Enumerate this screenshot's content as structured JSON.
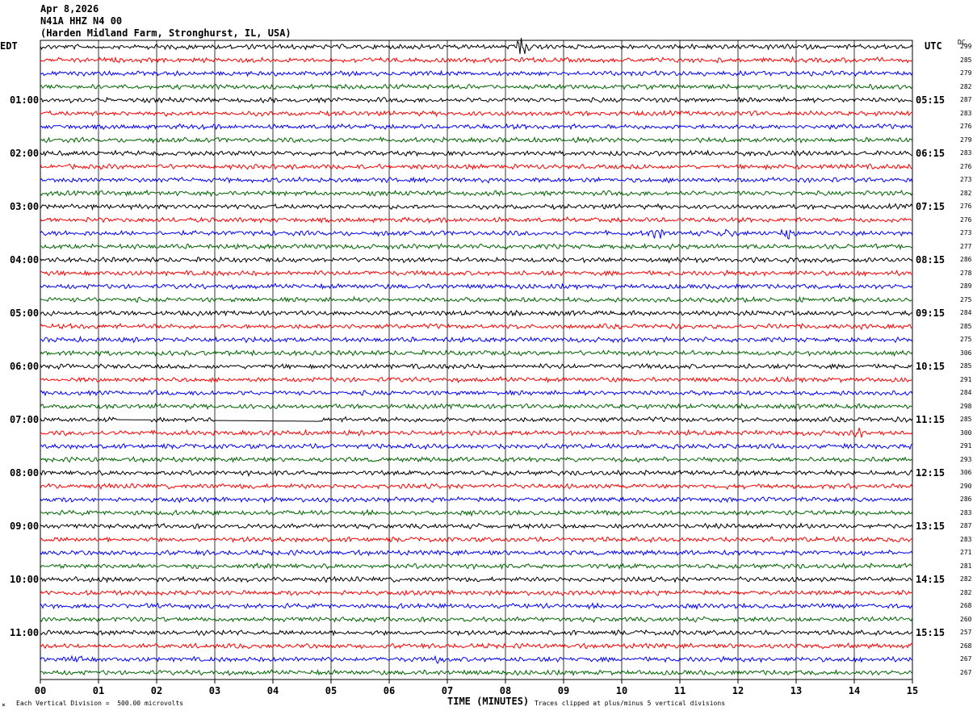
{
  "header": {
    "date": "Apr 8,2026",
    "station": "N41A HHZ N4 00",
    "location": "(Harden Midland Farm, Stronghurst, IL, USA)"
  },
  "left_tz": "EDT",
  "right_tz": "UTC",
  "dc_label": "DC",
  "footer": {
    "scale": "Each Vertical Division =  500.00 microvolts",
    "clip": "Traces clipped at plus/minus 5 vertical divisions",
    "xlabel": "TIME (MINUTES)"
  },
  "colors": {
    "trace_cycle": [
      "#000000",
      "#ff0000",
      "#0000ff",
      "#006400"
    ],
    "grid": "#000000",
    "background": "#ffffff"
  },
  "chart_data": {
    "type": "line",
    "title": "N41A HHZ N4 00",
    "xlabel": "TIME (MINUTES)",
    "xlim": [
      0,
      15
    ],
    "x_ticks": [
      "00",
      "01",
      "02",
      "03",
      "04",
      "05",
      "06",
      "07",
      "08",
      "09",
      "10",
      "11",
      "12",
      "13",
      "14",
      "15"
    ],
    "rows_per_hour": 4,
    "row_minutes": 15,
    "left_hour_labels": [
      "",
      "01:00",
      "02:00",
      "03:00",
      "04:00",
      "05:00",
      "06:00",
      "07:00",
      "08:00",
      "09:00",
      "10:00",
      "11:00"
    ],
    "right_hour_labels": [
      "",
      "05:15",
      "06:15",
      "07:15",
      "08:15",
      "09:15",
      "10:15",
      "11:15",
      "12:15",
      "13:15",
      "14:15",
      "15:15"
    ],
    "dc_offsets": [
      "299",
      "285",
      "279",
      "282",
      "287",
      "283",
      "276",
      "279",
      "283",
      "276",
      "273",
      "282",
      "276",
      "276",
      "273",
      "277",
      "286",
      "278",
      "289",
      "275",
      "284",
      "285",
      "275",
      "306",
      "285",
      "291",
      "284",
      "298",
      "285",
      "300",
      "291",
      "293",
      "306",
      "290",
      "286",
      "283",
      "287",
      "283",
      "271",
      "281",
      "282",
      "282",
      "268",
      "260",
      "257",
      "268",
      "267",
      "267"
    ],
    "events": [
      {
        "row": 0,
        "minute": 8.3,
        "amp": 3.0
      },
      {
        "row": 14,
        "minute": 10.6,
        "amp": 1.4
      },
      {
        "row": 14,
        "minute": 11.8,
        "amp": 1.6
      },
      {
        "row": 14,
        "minute": 12.9,
        "amp": 1.8
      },
      {
        "row": 29,
        "minute": 14.1,
        "amp": 1.8
      },
      {
        "row": 46,
        "minute": 0.6,
        "amp": 1.3
      },
      {
        "row": 46,
        "minute": 6.8,
        "amp": 1.4
      }
    ],
    "gaps": [
      {
        "row": 28,
        "start": 1.3,
        "end": 1.9
      },
      {
        "row": 28,
        "start": 3.0,
        "end": 4.8
      }
    ]
  }
}
